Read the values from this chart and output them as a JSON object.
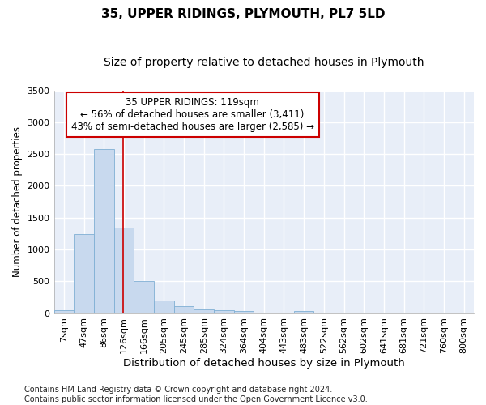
{
  "title": "35, UPPER RIDINGS, PLYMOUTH, PL7 5LD",
  "subtitle": "Size of property relative to detached houses in Plymouth",
  "xlabel": "Distribution of detached houses by size in Plymouth",
  "ylabel": "Number of detached properties",
  "categories": [
    "7sqm",
    "47sqm",
    "86sqm",
    "126sqm",
    "166sqm",
    "205sqm",
    "245sqm",
    "285sqm",
    "324sqm",
    "364sqm",
    "404sqm",
    "443sqm",
    "483sqm",
    "522sqm",
    "562sqm",
    "602sqm",
    "641sqm",
    "681sqm",
    "721sqm",
    "760sqm",
    "800sqm"
  ],
  "values": [
    50,
    1240,
    2580,
    1340,
    500,
    200,
    110,
    55,
    50,
    30,
    10,
    5,
    30,
    0,
    0,
    0,
    0,
    0,
    0,
    0,
    0
  ],
  "bar_color": "#c8d9ee",
  "bar_edge_color": "#7fafd4",
  "vline_x": 2.95,
  "vline_color": "#cc0000",
  "annotation_text": "35 UPPER RIDINGS: 119sqm\n← 56% of detached houses are smaller (3,411)\n43% of semi-detached houses are larger (2,585) →",
  "annotation_box_color": "#cc0000",
  "ylim": [
    0,
    3500
  ],
  "yticks": [
    0,
    500,
    1000,
    1500,
    2000,
    2500,
    3000,
    3500
  ],
  "background_color": "#e8eef8",
  "grid_color": "#ffffff",
  "fig_background": "#ffffff",
  "footer_line1": "Contains HM Land Registry data © Crown copyright and database right 2024.",
  "footer_line2": "Contains public sector information licensed under the Open Government Licence v3.0.",
  "title_fontsize": 11,
  "subtitle_fontsize": 10,
  "xlabel_fontsize": 9.5,
  "ylabel_fontsize": 8.5,
  "tick_fontsize": 8,
  "annotation_fontsize": 8.5,
  "footer_fontsize": 7
}
